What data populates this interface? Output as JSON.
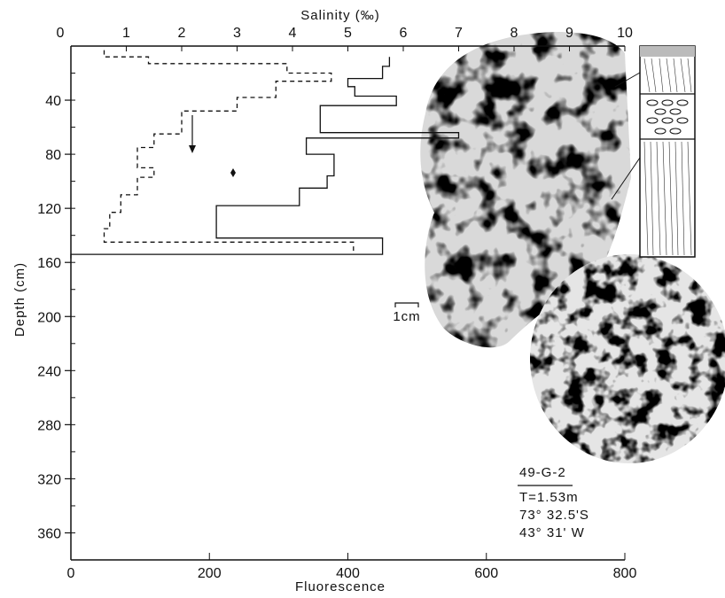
{
  "chart_data": {
    "type": "line",
    "title": "",
    "top_axis": {
      "label": "Salinity (‰)",
      "range": [
        0,
        10
      ],
      "ticks": [
        "0",
        "1",
        "2",
        "3",
        "4",
        "5",
        "6",
        "7",
        "8",
        "9",
        "10"
      ]
    },
    "bottom_axis": {
      "label": "Fluorescence",
      "range": [
        0,
        800
      ],
      "ticks": [
        "0",
        "200",
        "400",
        "600",
        "800"
      ]
    },
    "y_axis": {
      "label": "Depth (cm)",
      "range": [
        0,
        380
      ],
      "inverted": true,
      "ticks": [
        "40",
        "80",
        "120",
        "160",
        "200",
        "240",
        "280",
        "320",
        "360"
      ]
    },
    "series": [
      {
        "style": "solid",
        "x_axis": "bottom",
        "points": [
          [
            460,
            8
          ],
          [
            460,
            15
          ],
          [
            450,
            15
          ],
          [
            450,
            24
          ],
          [
            400,
            24
          ],
          [
            400,
            30
          ],
          [
            410,
            30
          ],
          [
            410,
            37
          ],
          [
            470,
            37
          ],
          [
            470,
            44
          ],
          [
            360,
            44
          ],
          [
            360,
            51
          ],
          [
            360,
            64
          ],
          [
            560,
            64
          ],
          [
            560,
            68
          ],
          [
            340,
            68
          ],
          [
            340,
            80
          ],
          [
            380,
            80
          ],
          [
            380,
            96
          ],
          [
            370,
            96
          ],
          [
            370,
            105
          ],
          [
            330,
            105
          ],
          [
            330,
            118
          ],
          [
            210,
            118
          ],
          [
            210,
            128
          ],
          [
            210,
            142
          ],
          [
            450,
            142
          ],
          [
            450,
            154
          ],
          [
            0,
            154
          ],
          [
            0,
            157
          ]
        ]
      },
      {
        "style": "dashed",
        "x_axis": "top",
        "points": [
          [
            0.6,
            3
          ],
          [
            0.6,
            8
          ],
          [
            1.4,
            8
          ],
          [
            1.4,
            13
          ],
          [
            3.9,
            13
          ],
          [
            3.9,
            20
          ],
          [
            4.7,
            20
          ],
          [
            4.7,
            26
          ],
          [
            3.7,
            26
          ],
          [
            3.7,
            38
          ],
          [
            3.0,
            38
          ],
          [
            3.0,
            48
          ],
          [
            2.0,
            48
          ],
          [
            2.0,
            65
          ],
          [
            1.5,
            65
          ],
          [
            1.5,
            75
          ],
          [
            1.2,
            75
          ],
          [
            1.2,
            90
          ],
          [
            1.5,
            90
          ],
          [
            1.5,
            97
          ],
          [
            1.2,
            97
          ],
          [
            1.2,
            110
          ],
          [
            0.9,
            110
          ],
          [
            0.9,
            123
          ],
          [
            0.7,
            123
          ],
          [
            0.7,
            135
          ],
          [
            0.6,
            135
          ],
          [
            0.6,
            145
          ],
          [
            5.1,
            145
          ],
          [
            5.1,
            152
          ]
        ]
      }
    ],
    "annotations": {
      "scale_bar": "1cm",
      "station": "49-G-2",
      "info": [
        "T=1.53m",
        "73° 32.5'S",
        "43° 31' W"
      ]
    }
  }
}
